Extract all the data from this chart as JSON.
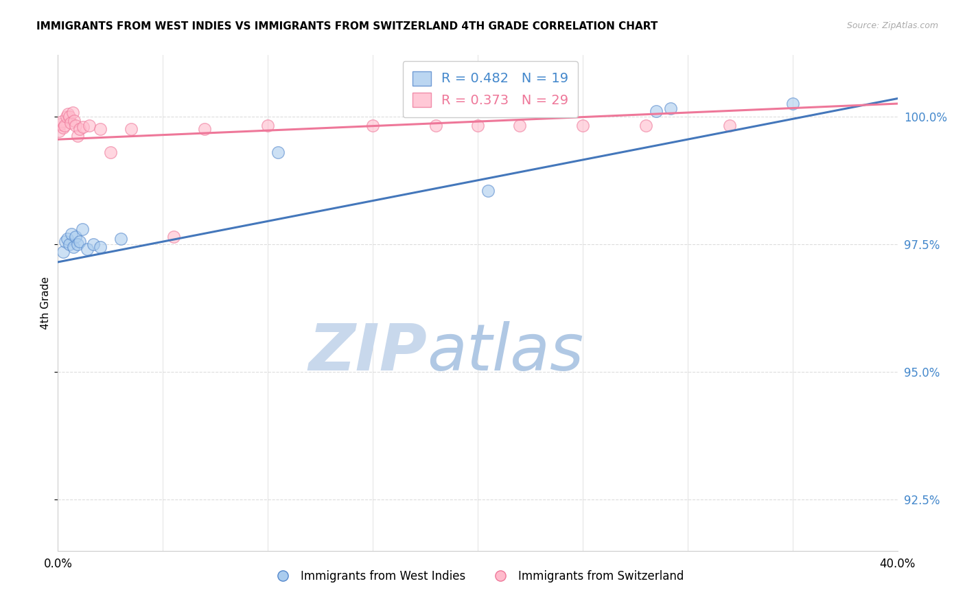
{
  "title": "IMMIGRANTS FROM WEST INDIES VS IMMIGRANTS FROM SWITZERLAND 4TH GRADE CORRELATION CHART",
  "source": "Source: ZipAtlas.com",
  "ylabel": "4th Grade",
  "ytick_labels": [
    "92.5%",
    "95.0%",
    "97.5%",
    "100.0%"
  ],
  "ytick_values": [
    92.5,
    95.0,
    97.5,
    100.0
  ],
  "xtick_values": [
    0.0,
    5.0,
    10.0,
    15.0,
    20.0,
    25.0,
    30.0,
    35.0,
    40.0
  ],
  "xtick_labels": [
    "0.0%",
    "",
    "",
    "",
    "",
    "",
    "",
    "",
    "40.0%"
  ],
  "xlim": [
    0.0,
    40.0
  ],
  "ylim": [
    91.5,
    101.2
  ],
  "blue_R": "0.482",
  "blue_N": "19",
  "pink_R": "0.373",
  "pink_N": "29",
  "legend_label_blue": "Immigrants from West Indies",
  "legend_label_pink": "Immigrants from Switzerland",
  "blue_fill_color": "#AACCEE",
  "blue_edge_color": "#5588CC",
  "pink_fill_color": "#FFBBCC",
  "pink_edge_color": "#EE7799",
  "blue_line_color": "#4477BB",
  "pink_line_color": "#EE7799",
  "legend_text_blue": "#4488CC",
  "legend_text_pink": "#EE7799",
  "right_axis_color": "#4488CC",
  "watermark_zip_color": "#C5D8EC",
  "watermark_atlas_color": "#B8CCE4",
  "grid_color": "#DDDDDD",
  "background_color": "#FFFFFF",
  "blue_x": [
    0.25,
    0.35,
    0.45,
    0.55,
    0.65,
    0.75,
    0.85,
    0.95,
    1.05,
    1.15,
    1.4,
    1.7,
    2.0,
    3.0,
    10.5,
    20.5,
    28.5,
    29.2,
    35.0
  ],
  "blue_y": [
    97.35,
    97.55,
    97.6,
    97.5,
    97.7,
    97.45,
    97.65,
    97.5,
    97.55,
    97.8,
    97.4,
    97.5,
    97.45,
    97.6,
    99.3,
    98.55,
    100.1,
    100.15,
    100.25
  ],
  "pink_x": [
    0.05,
    0.12,
    0.18,
    0.25,
    0.32,
    0.4,
    0.48,
    0.55,
    0.62,
    0.7,
    0.78,
    0.85,
    0.95,
    1.05,
    1.2,
    1.5,
    2.0,
    2.5,
    3.5,
    5.5,
    7.0,
    10.0,
    15.0,
    18.0,
    20.0,
    22.0,
    25.0,
    28.0,
    32.0
  ],
  "pink_y": [
    99.72,
    99.85,
    99.9,
    99.78,
    99.82,
    100.0,
    100.05,
    100.0,
    99.88,
    100.08,
    99.92,
    99.82,
    99.62,
    99.75,
    99.8,
    99.82,
    99.75,
    99.3,
    99.75,
    97.65,
    99.75,
    99.82,
    99.82,
    99.82,
    99.82,
    99.82,
    99.82,
    99.82,
    99.82
  ],
  "blue_trend_x": [
    0.0,
    40.0
  ],
  "blue_trend_y": [
    97.15,
    100.35
  ],
  "pink_trend_x": [
    0.0,
    40.0
  ],
  "pink_trend_y": [
    99.55,
    100.25
  ]
}
